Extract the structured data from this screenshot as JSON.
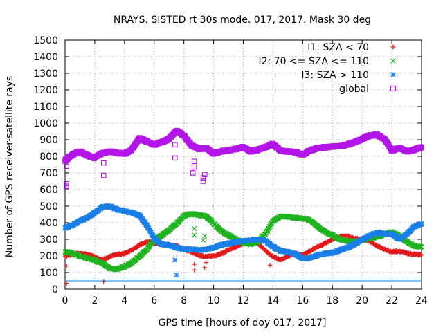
{
  "chart_data": {
    "type": "scatter",
    "title": "NRAYS. SISTED rt 30s mode. 017, 2017. Mask 30 deg",
    "xlabel": "GPS time [hours of doy 017, 2017]",
    "ylabel": "Number of GPS receiver-satellite rays",
    "xlim": [
      0,
      24
    ],
    "ylim": [
      0,
      1500
    ],
    "xticks": [
      0,
      2,
      4,
      6,
      8,
      10,
      12,
      14,
      16,
      18,
      20,
      22,
      24
    ],
    "yticks": [
      0,
      100,
      200,
      300,
      400,
      500,
      600,
      700,
      800,
      900,
      1000,
      1100,
      1200,
      1300,
      1400,
      1500
    ],
    "grid": true,
    "legend_position": "top-right",
    "baseline": {
      "y": 50,
      "color": "#56b4e9"
    },
    "series": [
      {
        "name": "I1: SZA < 70",
        "marker": "plus",
        "color": "#e41a1c",
        "points": [
          [
            0,
            200
          ],
          [
            0.5,
            210
          ],
          [
            1,
            215
          ],
          [
            1.5,
            210
          ],
          [
            2,
            195
          ],
          [
            2.5,
            175
          ],
          [
            3,
            195
          ],
          [
            3.5,
            210
          ],
          [
            4,
            215
          ],
          [
            4.5,
            235
          ],
          [
            5,
            265
          ],
          [
            5.5,
            285
          ],
          [
            6,
            280
          ],
          [
            6.5,
            270
          ],
          [
            7,
            265
          ],
          [
            7.5,
            260
          ],
          [
            8,
            240
          ],
          [
            8.5,
            225
          ],
          [
            9,
            205
          ],
          [
            9.5,
            195
          ],
          [
            10,
            200
          ],
          [
            10.5,
            215
          ],
          [
            11,
            235
          ],
          [
            11.5,
            255
          ],
          [
            12,
            275
          ],
          [
            12.5,
            290
          ],
          [
            13,
            275
          ],
          [
            13.5,
            230
          ],
          [
            14,
            195
          ],
          [
            14.5,
            175
          ],
          [
            15,
            200
          ],
          [
            15.5,
            215
          ],
          [
            16,
            205
          ],
          [
            16.5,
            230
          ],
          [
            17,
            255
          ],
          [
            17.5,
            275
          ],
          [
            18,
            300
          ],
          [
            18.5,
            315
          ],
          [
            19,
            320
          ],
          [
            19.5,
            305
          ],
          [
            20,
            300
          ],
          [
            20.5,
            290
          ],
          [
            21,
            260
          ],
          [
            21.5,
            240
          ],
          [
            22,
            225
          ],
          [
            22.5,
            230
          ],
          [
            23,
            215
          ],
          [
            23.5,
            210
          ],
          [
            24,
            205
          ]
        ]
      },
      {
        "name": "I2: 70 <= SZA <= 110",
        "marker": "cross",
        "color": "#1fb31f",
        "points": [
          [
            0,
            225
          ],
          [
            0.5,
            215
          ],
          [
            1,
            200
          ],
          [
            1.5,
            185
          ],
          [
            2,
            175
          ],
          [
            2.5,
            155
          ],
          [
            3,
            125
          ],
          [
            3.5,
            120
          ],
          [
            4,
            135
          ],
          [
            4.5,
            160
          ],
          [
            5,
            195
          ],
          [
            5.5,
            240
          ],
          [
            6,
            295
          ],
          [
            6.5,
            325
          ],
          [
            7,
            355
          ],
          [
            7.5,
            395
          ],
          [
            8,
            440
          ],
          [
            8.5,
            455
          ],
          [
            9,
            445
          ],
          [
            9.5,
            440
          ],
          [
            10,
            395
          ],
          [
            10.5,
            350
          ],
          [
            11,
            325
          ],
          [
            11.5,
            300
          ],
          [
            12,
            280
          ],
          [
            12.5,
            270
          ],
          [
            13,
            285
          ],
          [
            13.5,
            335
          ],
          [
            14,
            410
          ],
          [
            14.5,
            440
          ],
          [
            15,
            435
          ],
          [
            15.5,
            430
          ],
          [
            16,
            425
          ],
          [
            16.5,
            415
          ],
          [
            17,
            375
          ],
          [
            17.5,
            345
          ],
          [
            18,
            325
          ],
          [
            18.5,
            300
          ],
          [
            19,
            290
          ],
          [
            19.5,
            285
          ],
          [
            20,
            295
          ],
          [
            20.5,
            305
          ],
          [
            21,
            315
          ],
          [
            21.5,
            330
          ],
          [
            22,
            345
          ],
          [
            22.5,
            320
          ],
          [
            23,
            285
          ],
          [
            23.5,
            260
          ],
          [
            24,
            255
          ]
        ]
      },
      {
        "name": "I3: SZA > 110",
        "marker": "star",
        "color": "#1a7fe8",
        "points": [
          [
            0,
            370
          ],
          [
            0.5,
            385
          ],
          [
            1,
            410
          ],
          [
            1.5,
            430
          ],
          [
            2,
            460
          ],
          [
            2.5,
            495
          ],
          [
            3,
            500
          ],
          [
            3.5,
            480
          ],
          [
            4,
            470
          ],
          [
            4.5,
            460
          ],
          [
            5,
            445
          ],
          [
            5.5,
            385
          ],
          [
            6,
            305
          ],
          [
            6.5,
            270
          ],
          [
            7,
            265
          ],
          [
            7.5,
            250
          ],
          [
            8,
            240
          ],
          [
            8.5,
            240
          ],
          [
            9,
            235
          ],
          [
            9.5,
            240
          ],
          [
            10,
            250
          ],
          [
            10.5,
            265
          ],
          [
            11,
            275
          ],
          [
            11.5,
            285
          ],
          [
            12,
            290
          ],
          [
            12.5,
            295
          ],
          [
            13,
            300
          ],
          [
            13.5,
            290
          ],
          [
            14,
            255
          ],
          [
            14.5,
            230
          ],
          [
            15,
            225
          ],
          [
            15.5,
            210
          ],
          [
            16,
            185
          ],
          [
            16.5,
            185
          ],
          [
            17,
            205
          ],
          [
            17.5,
            215
          ],
          [
            18,
            220
          ],
          [
            18.5,
            235
          ],
          [
            19,
            250
          ],
          [
            19.5,
            270
          ],
          [
            20,
            300
          ],
          [
            20.5,
            320
          ],
          [
            21,
            340
          ],
          [
            21.5,
            335
          ],
          [
            22,
            330
          ],
          [
            22.5,
            300
          ],
          [
            23,
            330
          ],
          [
            23.5,
            375
          ],
          [
            24,
            395
          ]
        ]
      },
      {
        "name": "global",
        "marker": "square",
        "color": "#b316e8",
        "points": [
          [
            0,
            775
          ],
          [
            0.5,
            810
          ],
          [
            1,
            830
          ],
          [
            1.5,
            805
          ],
          [
            2,
            790
          ],
          [
            2.5,
            820
          ],
          [
            3,
            830
          ],
          [
            3.5,
            820
          ],
          [
            4,
            815
          ],
          [
            4.5,
            840
          ],
          [
            5,
            910
          ],
          [
            5.5,
            890
          ],
          [
            6,
            870
          ],
          [
            6.5,
            885
          ],
          [
            7,
            905
          ],
          [
            7.5,
            955
          ],
          [
            8,
            925
          ],
          [
            8.5,
            865
          ],
          [
            9,
            845
          ],
          [
            9.5,
            850
          ],
          [
            10,
            815
          ],
          [
            10.5,
            830
          ],
          [
            11,
            835
          ],
          [
            11.5,
            845
          ],
          [
            12,
            855
          ],
          [
            12.5,
            830
          ],
          [
            13,
            840
          ],
          [
            13.5,
            855
          ],
          [
            14,
            875
          ],
          [
            14.5,
            835
          ],
          [
            15,
            830
          ],
          [
            15.5,
            825
          ],
          [
            16,
            810
          ],
          [
            16.5,
            835
          ],
          [
            17,
            850
          ],
          [
            17.5,
            855
          ],
          [
            18,
            860
          ],
          [
            18.5,
            860
          ],
          [
            19,
            870
          ],
          [
            19.5,
            885
          ],
          [
            20,
            905
          ],
          [
            20.5,
            925
          ],
          [
            21,
            930
          ],
          [
            21.5,
            905
          ],
          [
            22,
            835
          ],
          [
            22.5,
            850
          ],
          [
            23,
            830
          ],
          [
            23.5,
            840
          ],
          [
            24,
            855
          ]
        ]
      }
    ],
    "outliers": {
      "I1: SZA < 70": [
        [
          0.1,
          35
        ],
        [
          0.1,
          140
        ],
        [
          0.1,
          200
        ],
        [
          2.6,
          45
        ],
        [
          8.7,
          115
        ],
        [
          8.7,
          150
        ],
        [
          9.4,
          130
        ],
        [
          9.5,
          160
        ],
        [
          13.8,
          145
        ]
      ],
      "I2: 70 <= SZA <= 110": [
        [
          8.7,
          325
        ],
        [
          8.7,
          365
        ],
        [
          9.3,
          295
        ],
        [
          9.4,
          320
        ]
      ],
      "I3: SZA > 110": [
        [
          7.5,
          85
        ],
        [
          7.4,
          175
        ]
      ],
      "global": [
        [
          0.1,
          620
        ],
        [
          0.1,
          635
        ],
        [
          0.1,
          740
        ],
        [
          2.6,
          685
        ],
        [
          2.6,
          760
        ],
        [
          7.4,
          790
        ],
        [
          7.4,
          870
        ],
        [
          8.6,
          700
        ],
        [
          8.7,
          735
        ],
        [
          8.7,
          770
        ],
        [
          9.3,
          650
        ],
        [
          9.3,
          670
        ],
        [
          9.4,
          690
        ],
        [
          13.8,
          870
        ]
      ]
    }
  }
}
